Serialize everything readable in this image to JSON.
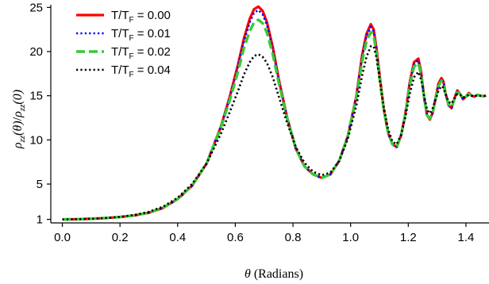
{
  "chart_data": {
    "type": "line",
    "title": "",
    "xlabel": {
      "symbol": "θ",
      "text": " (Radians)"
    },
    "ylabel": {
      "symbol": "ρ",
      "sub": "zz",
      "num_arg": "(θ)",
      "slash": "/",
      "den_arg": "(0)"
    },
    "xlim": [
      -0.04,
      1.48
    ],
    "ylim": [
      0.6,
      25.3
    ],
    "x_ticks": [
      {
        "value": 0.0,
        "label": "0.0"
      },
      {
        "value": 0.2,
        "label": "0.2"
      },
      {
        "value": 0.4,
        "label": "0.4"
      },
      {
        "value": 0.6,
        "label": "0.6"
      },
      {
        "value": 0.8,
        "label": "0.8"
      },
      {
        "value": 1.0,
        "label": "1.0"
      },
      {
        "value": 1.2,
        "label": "1.2"
      },
      {
        "value": 1.4,
        "label": "1.4"
      }
    ],
    "y_ticks": [
      {
        "value": 1,
        "label": "1"
      },
      {
        "value": 5,
        "label": "5"
      },
      {
        "value": 10,
        "label": "10"
      },
      {
        "value": 15,
        "label": "15"
      },
      {
        "value": 20,
        "label": "20"
      },
      {
        "value": 25,
        "label": "25"
      }
    ],
    "grid": false,
    "legend_position": "top-left",
    "series": [
      {
        "name": {
          "prefix": "T/T",
          "sub": "F",
          "suffix": " = 0.00"
        },
        "color": "#ff0000",
        "style": "solid",
        "x": [
          0.0,
          0.05,
          0.1,
          0.15,
          0.2,
          0.25,
          0.3,
          0.35,
          0.4,
          0.45,
          0.5,
          0.55,
          0.58,
          0.61,
          0.63,
          0.65,
          0.665,
          0.68,
          0.695,
          0.71,
          0.73,
          0.75,
          0.78,
          0.81,
          0.84,
          0.87,
          0.9,
          0.93,
          0.96,
          0.99,
          1.02,
          1.04,
          1.055,
          1.07,
          1.08,
          1.09,
          1.1,
          1.115,
          1.13,
          1.145,
          1.16,
          1.175,
          1.19,
          1.205,
          1.22,
          1.235,
          1.245,
          1.255,
          1.265,
          1.275,
          1.285,
          1.295,
          1.305,
          1.315,
          1.322,
          1.33,
          1.34,
          1.35,
          1.36,
          1.37,
          1.38,
          1.39,
          1.4,
          1.41,
          1.42,
          1.43,
          1.44,
          1.45,
          1.46,
          1.47
        ],
        "y": [
          1.0,
          1.02,
          1.07,
          1.15,
          1.27,
          1.45,
          1.75,
          2.3,
          3.3,
          4.8,
          7.3,
          11.5,
          14.8,
          18.6,
          21.5,
          23.7,
          24.8,
          25.1,
          24.6,
          23.3,
          20.5,
          17.0,
          12.5,
          9.0,
          7.0,
          6.1,
          5.7,
          6.1,
          7.6,
          10.4,
          15.0,
          19.6,
          22.0,
          23.1,
          22.5,
          20.3,
          17.5,
          13.5,
          10.8,
          9.5,
          9.2,
          10.5,
          13.0,
          16.5,
          18.8,
          19.2,
          17.6,
          14.8,
          12.8,
          12.3,
          13.1,
          14.8,
          16.4,
          17.0,
          16.6,
          15.2,
          13.9,
          13.6,
          14.7,
          15.6,
          15.2,
          14.6,
          14.9,
          15.3,
          15.0,
          14.9,
          15.1,
          15.0,
          14.95,
          15.0
        ]
      },
      {
        "name": {
          "prefix": "T/T",
          "sub": "F",
          "suffix": " = 0.01"
        },
        "color": "#0000ff",
        "style": "dotted",
        "x": [
          0.0,
          0.05,
          0.1,
          0.15,
          0.2,
          0.25,
          0.3,
          0.35,
          0.4,
          0.45,
          0.5,
          0.55,
          0.58,
          0.61,
          0.63,
          0.65,
          0.665,
          0.68,
          0.695,
          0.71,
          0.73,
          0.75,
          0.78,
          0.81,
          0.84,
          0.87,
          0.9,
          0.93,
          0.96,
          0.99,
          1.02,
          1.04,
          1.055,
          1.07,
          1.08,
          1.09,
          1.1,
          1.115,
          1.13,
          1.145,
          1.16,
          1.175,
          1.19,
          1.205,
          1.22,
          1.235,
          1.245,
          1.255,
          1.265,
          1.275,
          1.285,
          1.295,
          1.305,
          1.315,
          1.322,
          1.33,
          1.34,
          1.35,
          1.36,
          1.37,
          1.38,
          1.39,
          1.4,
          1.41,
          1.42,
          1.43,
          1.44,
          1.45,
          1.46,
          1.47
        ],
        "y": [
          1.0,
          1.02,
          1.07,
          1.15,
          1.27,
          1.45,
          1.75,
          2.3,
          3.3,
          4.8,
          7.3,
          11.5,
          14.7,
          18.4,
          21.2,
          23.3,
          24.4,
          24.7,
          24.2,
          23.0,
          20.3,
          16.9,
          12.5,
          9.0,
          7.0,
          6.1,
          5.7,
          6.1,
          7.6,
          10.4,
          15.0,
          19.4,
          21.8,
          22.8,
          22.3,
          20.2,
          17.4,
          13.5,
          10.8,
          9.5,
          9.2,
          10.5,
          13.0,
          16.4,
          18.6,
          19.0,
          17.5,
          14.8,
          12.8,
          12.3,
          13.1,
          14.8,
          16.3,
          16.9,
          16.5,
          15.2,
          13.9,
          13.6,
          14.6,
          15.5,
          15.2,
          14.6,
          14.9,
          15.2,
          15.0,
          14.9,
          15.1,
          15.0,
          14.95,
          15.0
        ]
      },
      {
        "name": {
          "prefix": "T/T",
          "sub": "F",
          "suffix": " = 0.02"
        },
        "color": "#33cc33",
        "style": "dashed",
        "x": [
          0.0,
          0.05,
          0.1,
          0.15,
          0.2,
          0.25,
          0.3,
          0.35,
          0.4,
          0.45,
          0.5,
          0.55,
          0.58,
          0.61,
          0.63,
          0.65,
          0.665,
          0.68,
          0.695,
          0.71,
          0.73,
          0.75,
          0.78,
          0.81,
          0.84,
          0.87,
          0.9,
          0.93,
          0.96,
          0.99,
          1.02,
          1.04,
          1.055,
          1.07,
          1.08,
          1.09,
          1.1,
          1.115,
          1.13,
          1.145,
          1.16,
          1.175,
          1.19,
          1.205,
          1.22,
          1.235,
          1.245,
          1.255,
          1.265,
          1.275,
          1.285,
          1.295,
          1.305,
          1.315,
          1.322,
          1.33,
          1.34,
          1.35,
          1.36,
          1.37,
          1.38,
          1.39,
          1.4,
          1.41,
          1.42,
          1.43,
          1.44,
          1.45,
          1.46,
          1.47
        ],
        "y": [
          1.0,
          1.02,
          1.07,
          1.15,
          1.27,
          1.46,
          1.77,
          2.32,
          3.32,
          4.85,
          7.3,
          11.4,
          14.4,
          17.8,
          20.4,
          22.3,
          23.3,
          23.6,
          23.2,
          22.1,
          19.7,
          16.6,
          12.4,
          9.0,
          7.0,
          6.1,
          5.7,
          6.1,
          7.6,
          10.4,
          14.8,
          18.9,
          21.2,
          22.2,
          21.8,
          19.8,
          17.1,
          13.4,
          10.8,
          9.5,
          9.2,
          10.5,
          12.9,
          16.2,
          18.3,
          18.7,
          17.3,
          14.8,
          12.8,
          12.4,
          13.1,
          14.7,
          16.1,
          16.7,
          16.3,
          15.1,
          14.0,
          13.7,
          14.6,
          15.4,
          15.2,
          14.7,
          14.9,
          15.2,
          15.0,
          14.9,
          15.1,
          15.0,
          14.95,
          15.0
        ]
      },
      {
        "name": {
          "prefix": "T/T",
          "sub": "F",
          "suffix": " = 0.04"
        },
        "color": "#000000",
        "style": "dotted",
        "x": [
          0.0,
          0.05,
          0.1,
          0.15,
          0.2,
          0.25,
          0.3,
          0.35,
          0.4,
          0.45,
          0.5,
          0.55,
          0.58,
          0.61,
          0.63,
          0.65,
          0.665,
          0.68,
          0.695,
          0.71,
          0.73,
          0.75,
          0.78,
          0.81,
          0.84,
          0.87,
          0.9,
          0.93,
          0.96,
          0.99,
          1.02,
          1.04,
          1.055,
          1.07,
          1.08,
          1.09,
          1.1,
          1.115,
          1.13,
          1.145,
          1.16,
          1.175,
          1.19,
          1.205,
          1.22,
          1.235,
          1.245,
          1.255,
          1.265,
          1.275,
          1.285,
          1.295,
          1.305,
          1.315,
          1.322,
          1.33,
          1.34,
          1.35,
          1.36,
          1.37,
          1.38,
          1.39,
          1.4,
          1.41,
          1.42,
          1.43,
          1.44,
          1.45,
          1.46,
          1.47
        ],
        "y": [
          1.0,
          1.02,
          1.07,
          1.16,
          1.29,
          1.5,
          1.85,
          2.45,
          3.45,
          5.0,
          7.3,
          10.7,
          13.1,
          15.6,
          17.4,
          18.8,
          19.5,
          19.7,
          19.4,
          18.7,
          17.1,
          15.0,
          11.9,
          9.2,
          7.4,
          6.4,
          6.0,
          6.3,
          7.6,
          10.1,
          13.9,
          17.3,
          19.4,
          20.6,
          20.6,
          19.3,
          17.0,
          13.7,
          11.2,
          9.8,
          9.5,
          10.6,
          12.6,
          15.2,
          17.1,
          17.7,
          16.8,
          15.0,
          13.4,
          13.0,
          13.6,
          14.6,
          15.6,
          16.1,
          15.9,
          15.1,
          14.3,
          14.1,
          14.7,
          15.2,
          15.1,
          14.8,
          14.9,
          15.1,
          15.0,
          14.95,
          15.05,
          15.0,
          14.98,
          15.0
        ]
      }
    ]
  }
}
